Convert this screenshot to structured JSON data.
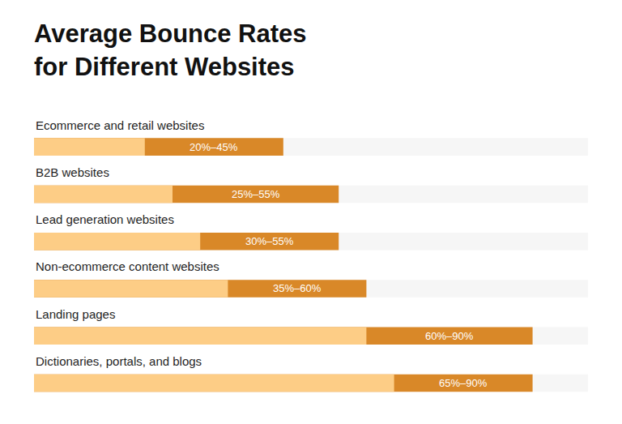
{
  "chart_data": {
    "type": "bar",
    "orientation": "horizontal",
    "title": "Average Bounce Rates\nfor Different Websites",
    "categories": [
      "Ecommerce and retail websites",
      "B2B websites",
      "Lead generation websites",
      "Non-ecommerce content websites",
      "Landing pages",
      "Dictionaries, portals, and blogs"
    ],
    "values": [
      [
        20,
        45
      ],
      [
        25,
        55
      ],
      [
        30,
        55
      ],
      [
        35,
        60
      ],
      [
        60,
        90
      ],
      [
        65,
        90
      ]
    ],
    "value_labels": [
      "20%–45%",
      "25%–55%",
      "30%–55%",
      "35%–60%",
      "60%–90%",
      "65%–90%"
    ],
    "color": "#d98828",
    "xlim": [
      0,
      100
    ],
    "xticks": [],
    "grid": false,
    "data_labels": true,
    "tick_labels": false
  }
}
